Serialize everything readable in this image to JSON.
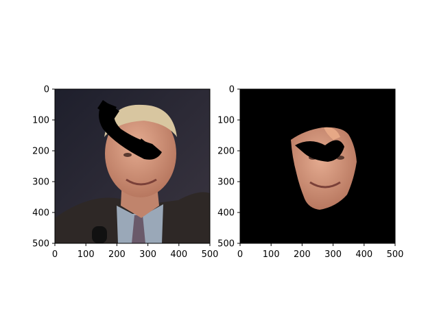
{
  "chart_data": [
    {
      "type": "image",
      "description_key": "left-panel",
      "xlim": [
        0,
        500
      ],
      "ylim": [
        500,
        0
      ],
      "x_ticks": [
        0,
        100,
        200,
        300,
        400,
        500
      ],
      "y_ticks": [
        0,
        100,
        200,
        300,
        400,
        500
      ],
      "x_tick_labels": [
        "0",
        "100",
        "200",
        "300",
        "400",
        "500"
      ],
      "y_tick_labels": [
        "0",
        "100",
        "200",
        "300",
        "400",
        "500"
      ],
      "background_color": "#2b2a33",
      "occlusion_color": "#000000"
    },
    {
      "type": "image",
      "description_key": "right-panel",
      "xlim": [
        0,
        500
      ],
      "ylim": [
        500,
        0
      ],
      "x_ticks": [
        0,
        100,
        200,
        300,
        400,
        500
      ],
      "y_ticks": [
        0,
        100,
        200,
        300,
        400,
        500
      ],
      "x_tick_labels": [
        "0",
        "100",
        "200",
        "300",
        "400",
        "500"
      ],
      "y_tick_labels": [
        "0",
        "100",
        "200",
        "300",
        "400",
        "500"
      ],
      "background_color": "#000000",
      "occlusion_color": "#000000"
    }
  ],
  "colors": {
    "suit": "#2e2826",
    "skin": "#d89a80",
    "hair": "#d8c6a0",
    "shirt": "#9aa8b8",
    "tie": "#6a5a6a"
  }
}
